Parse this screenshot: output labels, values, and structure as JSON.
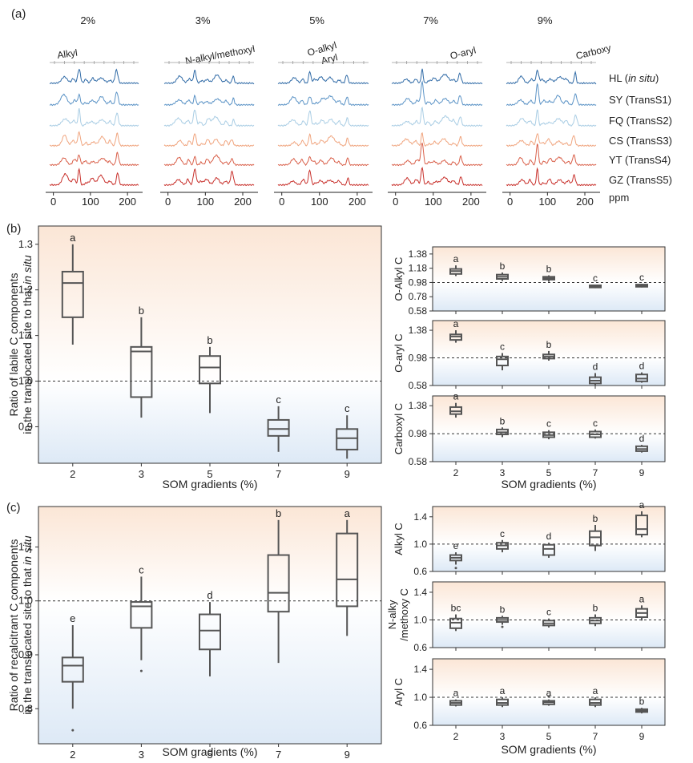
{
  "panel_a": {
    "panel_label": "(a)",
    "gradient_labels": [
      "2%",
      "3%",
      "5%",
      "7%",
      "9%"
    ],
    "region_labels": [
      "Alkyl",
      "N-alkyl/methoxyl",
      "O-alkyl",
      "Aryl",
      "O-aryl",
      "Carboxy"
    ],
    "sites": [
      {
        "name": "HL (",
        "italic": "in situ",
        "close": ")",
        "color": "#2f6aa6"
      },
      {
        "name": "SY (TransS1)",
        "color": "#5b93c6"
      },
      {
        "name": "FQ (TransS2)",
        "color": "#a9cde4"
      },
      {
        "name": "CS (TransS3)",
        "color": "#f0a57f"
      },
      {
        "name": "YT (TransS4)",
        "color": "#d9604a"
      },
      {
        "name": "GZ (TransS5)",
        "color": "#c8302b"
      }
    ],
    "x_ticks": [
      "0",
      "100",
      "200"
    ],
    "unit": "ppm"
  },
  "panel_b": {
    "panel_label": "(b)"
  },
  "panel_c": {
    "panel_label": "(c)"
  },
  "colors": {
    "top_tint": "#fbe6d6",
    "bottom_tint": "#dde9f6",
    "box": "#555555"
  },
  "chart_data": [
    {
      "id": "b-main",
      "type": "box",
      "ylabel": "Ratio of labile C components in the translocated site to that in situ",
      "ylabel_line1": "Ratio of labile C components",
      "ylabel_line2_prefix": "in the translocated site to that ",
      "ylabel_line2_italic": "in situ",
      "xlabel": "SOM gradients (%)",
      "categories": [
        "2",
        "3",
        "5",
        "7",
        "9"
      ],
      "ylim": [
        0.82,
        1.34
      ],
      "yticks": [
        0.9,
        1.0,
        1.1,
        1.2,
        1.3
      ],
      "ref": 1.0,
      "boxes": [
        {
          "min": 1.08,
          "q1": 1.14,
          "med": 1.215,
          "q3": 1.24,
          "max": 1.3,
          "letter": "a"
        },
        {
          "min": 0.92,
          "q1": 0.965,
          "med": 1.065,
          "q3": 1.075,
          "max": 1.14,
          "letter": "b"
        },
        {
          "min": 0.93,
          "q1": 0.995,
          "med": 1.03,
          "q3": 1.055,
          "max": 1.075,
          "letter": "b"
        },
        {
          "min": 0.845,
          "q1": 0.88,
          "med": 0.895,
          "q3": 0.915,
          "max": 0.945,
          "letter": "c"
        },
        {
          "min": 0.83,
          "q1": 0.85,
          "med": 0.875,
          "q3": 0.895,
          "max": 0.925,
          "letter": "c"
        }
      ]
    },
    {
      "id": "b-oalkyl",
      "type": "box",
      "ylabel": "O-Alkyl C",
      "categories": [
        "2",
        "3",
        "5",
        "7",
        "9"
      ],
      "ylim": [
        0.58,
        1.48
      ],
      "yticks": [
        0.58,
        0.78,
        0.98,
        1.18,
        1.38
      ],
      "ref": 0.98,
      "boxes": [
        {
          "min": 1.07,
          "q1": 1.1,
          "med": 1.14,
          "q3": 1.17,
          "max": 1.22,
          "letter": "a"
        },
        {
          "min": 1.0,
          "q1": 1.03,
          "med": 1.06,
          "q3": 1.09,
          "max": 1.12,
          "letter": "b"
        },
        {
          "min": 0.99,
          "q1": 1.02,
          "med": 1.04,
          "q3": 1.06,
          "max": 1.08,
          "letter": "b"
        },
        {
          "min": 0.9,
          "q1": 0.91,
          "med": 0.925,
          "q3": 0.94,
          "max": 0.95,
          "letter": "c"
        },
        {
          "min": 0.91,
          "q1": 0.92,
          "med": 0.935,
          "q3": 0.95,
          "max": 0.96,
          "letter": "c"
        }
      ]
    },
    {
      "id": "b-oaryl",
      "type": "box",
      "ylabel": "O-aryl C",
      "categories": [
        "2",
        "3",
        "5",
        "7",
        "9"
      ],
      "ylim": [
        0.58,
        1.52
      ],
      "yticks": [
        0.58,
        0.98,
        1.38
      ],
      "ref": 0.98,
      "boxes": [
        {
          "min": 1.2,
          "q1": 1.24,
          "med": 1.29,
          "q3": 1.32,
          "max": 1.38,
          "letter": "a"
        },
        {
          "min": 0.8,
          "q1": 0.87,
          "med": 0.96,
          "q3": 1.0,
          "max": 1.05,
          "letter": "c"
        },
        {
          "min": 0.94,
          "q1": 0.97,
          "med": 1.0,
          "q3": 1.03,
          "max": 1.08,
          "letter": "b"
        },
        {
          "min": 0.58,
          "q1": 0.61,
          "med": 0.65,
          "q3": 0.7,
          "max": 0.76,
          "letter": "d"
        },
        {
          "min": 0.62,
          "q1": 0.64,
          "med": 0.68,
          "q3": 0.74,
          "max": 0.77,
          "letter": "d"
        }
      ]
    },
    {
      "id": "b-carboxyl",
      "type": "box",
      "ylabel": "Carboxyl C",
      "xlabel": "SOM gradients (%)",
      "categories": [
        "2",
        "3",
        "5",
        "7",
        "9"
      ],
      "ylim": [
        0.58,
        1.52
      ],
      "yticks": [
        0.58,
        0.98,
        1.38
      ],
      "ref": 0.98,
      "boxes": [
        {
          "min": 1.21,
          "q1": 1.26,
          "med": 1.3,
          "q3": 1.36,
          "max": 1.42,
          "letter": "a"
        },
        {
          "min": 0.93,
          "q1": 0.97,
          "med": 1.0,
          "q3": 1.04,
          "max": 1.07,
          "letter": "b"
        },
        {
          "min": 0.9,
          "q1": 0.93,
          "med": 0.96,
          "q3": 1.0,
          "max": 1.03,
          "letter": "c"
        },
        {
          "min": 0.91,
          "q1": 0.93,
          "med": 0.97,
          "q3": 1.01,
          "max": 1.04,
          "letter": "c"
        },
        {
          "min": 0.71,
          "q1": 0.73,
          "med": 0.76,
          "q3": 0.8,
          "max": 0.82,
          "letter": "d"
        }
      ]
    },
    {
      "id": "c-main",
      "type": "box",
      "ylabel": "Ratio of recalcitrant C components in the translocated site to that in situ",
      "ylabel_line1": "Ratio of recalcitrant C components",
      "ylabel_line2_prefix": "in the translocated site to that ",
      "ylabel_line2_italic": "in situ",
      "xlabel": "SOM gradients (%)",
      "categories": [
        "2",
        "3",
        "5",
        "7",
        "9"
      ],
      "ylim": [
        0.735,
        1.175
      ],
      "yticks": [
        0.8,
        0.9,
        1.0,
        1.1
      ],
      "ref": 1.0,
      "boxes": [
        {
          "min": 0.8,
          "q1": 0.85,
          "med": 0.88,
          "q3": 0.895,
          "max": 0.955,
          "letter": "e",
          "outliers": [
            0.76
          ]
        },
        {
          "min": 0.89,
          "q1": 0.95,
          "med": 0.99,
          "q3": 0.998,
          "max": 1.045,
          "letter": "c",
          "outliers": [
            0.87
          ]
        },
        {
          "min": 0.86,
          "q1": 0.91,
          "med": 0.945,
          "q3": 0.975,
          "max": 0.998,
          "letter": "d"
        },
        {
          "min": 0.885,
          "q1": 0.98,
          "med": 1.015,
          "q3": 1.085,
          "max": 1.15,
          "letter": "b"
        },
        {
          "min": 0.935,
          "q1": 0.99,
          "med": 1.04,
          "q3": 1.125,
          "max": 1.15,
          "letter": "a"
        }
      ]
    },
    {
      "id": "c-alkyl",
      "type": "box",
      "ylabel": "Alkyl C",
      "categories": [
        "2",
        "3",
        "5",
        "7",
        "9"
      ],
      "ylim": [
        0.6,
        1.55
      ],
      "yticks": [
        0.6,
        1.0,
        1.4
      ],
      "ref": 1.0,
      "boxes": [
        {
          "min": 0.7,
          "q1": 0.76,
          "med": 0.8,
          "q3": 0.84,
          "max": 0.88,
          "letter": "e",
          "outliers": [
            0.65
          ]
        },
        {
          "min": 0.88,
          "q1": 0.93,
          "med": 0.98,
          "q3": 1.02,
          "max": 1.06,
          "letter": "c"
        },
        {
          "min": 0.8,
          "q1": 0.84,
          "med": 0.93,
          "q3": 0.99,
          "max": 1.02,
          "letter": "d"
        },
        {
          "min": 0.9,
          "q1": 0.98,
          "med": 1.1,
          "q3": 1.19,
          "max": 1.28,
          "letter": "b"
        },
        {
          "min": 1.1,
          "q1": 1.14,
          "med": 1.22,
          "q3": 1.42,
          "max": 1.48,
          "letter": "a"
        }
      ]
    },
    {
      "id": "c-nalkyl",
      "type": "box",
      "ylabel_line1": "N-alky",
      "ylabel_line2": "/methoxy C",
      "categories": [
        "2",
        "3",
        "5",
        "7",
        "9"
      ],
      "ylim": [
        0.6,
        1.55
      ],
      "yticks": [
        0.6,
        1.0,
        1.4
      ],
      "ref": 1.0,
      "boxes": [
        {
          "min": 0.84,
          "q1": 0.88,
          "med": 0.96,
          "q3": 1.02,
          "max": 1.08,
          "letter": "bc"
        },
        {
          "min": 0.93,
          "q1": 0.97,
          "med": 1.0,
          "q3": 1.03,
          "max": 1.06,
          "letter": "b",
          "outliers": [
            0.9
          ]
        },
        {
          "min": 0.89,
          "q1": 0.92,
          "med": 0.95,
          "q3": 0.99,
          "max": 1.02,
          "letter": "c"
        },
        {
          "min": 0.91,
          "q1": 0.95,
          "med": 0.99,
          "q3": 1.03,
          "max": 1.08,
          "letter": "b"
        },
        {
          "min": 0.99,
          "q1": 1.04,
          "med": 1.1,
          "q3": 1.16,
          "max": 1.21,
          "letter": "a"
        }
      ]
    },
    {
      "id": "c-aryl",
      "type": "box",
      "ylabel": "Aryl C",
      "xlabel": "SOM gradients (%)",
      "categories": [
        "2",
        "3",
        "5",
        "7",
        "9"
      ],
      "ylim": [
        0.6,
        1.55
      ],
      "yticks": [
        0.6,
        1.0,
        1.4
      ],
      "ref": 1.0,
      "boxes": [
        {
          "min": 0.87,
          "q1": 0.89,
          "med": 0.92,
          "q3": 0.95,
          "max": 0.97,
          "letter": "a"
        },
        {
          "min": 0.86,
          "q1": 0.89,
          "med": 0.92,
          "q3": 0.97,
          "max": 1.0,
          "letter": "a"
        },
        {
          "min": 0.88,
          "q1": 0.9,
          "med": 0.93,
          "q3": 0.95,
          "max": 0.97,
          "letter": "a",
          "outliers": [
            1.01
          ]
        },
        {
          "min": 0.86,
          "q1": 0.89,
          "med": 0.92,
          "q3": 0.97,
          "max": 1.0,
          "letter": "a"
        },
        {
          "min": 0.77,
          "q1": 0.79,
          "med": 0.81,
          "q3": 0.83,
          "max": 0.85,
          "letter": "b"
        }
      ]
    }
  ]
}
